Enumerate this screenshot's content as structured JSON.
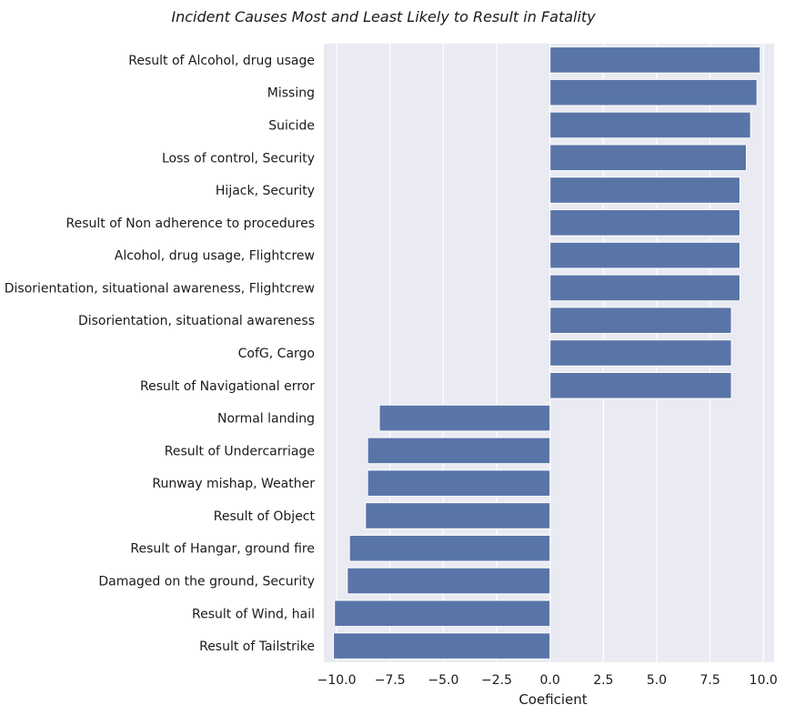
{
  "chart_data": {
    "type": "bar",
    "orientation": "horizontal",
    "title": "Incident Causes Most and Least Likely to Result in Fatality",
    "xlabel": "Coeficient",
    "ylabel": "",
    "xlim": [
      -10.6,
      10.5
    ],
    "xticks": [
      -10.0,
      -7.5,
      -5.0,
      -2.5,
      0.0,
      2.5,
      5.0,
      7.5,
      10.0
    ],
    "xtick_labels": [
      "−10.0",
      "−7.5",
      "−5.0",
      "−2.5",
      "0.0",
      "2.5",
      "5.0",
      "7.5",
      "10.0"
    ],
    "grid": true,
    "bar_color": "#5975a8",
    "background_color": "#eaeaf2",
    "categories": [
      "Result of Alcohol, drug usage",
      "Missing",
      "Suicide",
      "Loss of control, Security ",
      "Hijack, Security ",
      "Result of Non adherence to procedures",
      "Alcohol, drug usage, Flightcrew ",
      "Disorientation, situational awareness, Flightcrew ",
      "Disorientation, situational awareness",
      "CofG, Cargo ",
      "Result of Navigational error",
      "Normal landing",
      "Result of Undercarriage",
      "Runway mishap, Weather ",
      "Result of Object",
      "Result of Hangar, ground fire",
      "Damaged on the ground, Security ",
      "Result of Wind, hail",
      "Result of Tailstrike"
    ],
    "values": [
      9.85,
      9.7,
      9.4,
      9.2,
      8.9,
      8.9,
      8.9,
      8.9,
      8.5,
      8.5,
      8.5,
      -8.0,
      -8.55,
      -8.55,
      -8.65,
      -9.4,
      -9.5,
      -10.1,
      -10.15
    ]
  }
}
